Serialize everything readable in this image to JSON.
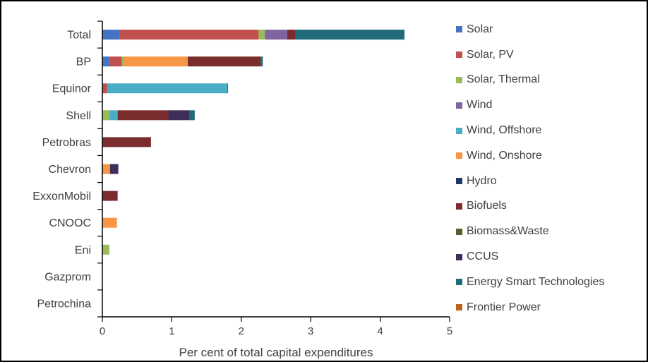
{
  "chart_data": {
    "type": "bar",
    "orientation": "horizontal",
    "stacked": true,
    "title": "",
    "xlabel": "Per cent of total capital expenditures",
    "ylabel": "",
    "xlim": [
      0,
      5
    ],
    "xticks": [
      0,
      1,
      2,
      3,
      4,
      5
    ],
    "grid": false,
    "legend_position": "right",
    "categories": [
      "Total",
      "BP",
      "Equinor",
      "Shell",
      "Petrobras",
      "Chevron",
      "ExxonMobil",
      "CNOOC",
      "Eni",
      "Gazprom",
      "Petrochina"
    ],
    "series": [
      {
        "name": "Solar",
        "color": "#4472C4",
        "values": [
          0.25,
          0.1,
          0,
          0,
          0,
          0,
          0,
          0,
          0,
          0,
          0
        ]
      },
      {
        "name": "Solar, PV",
        "color": "#C0504D",
        "values": [
          2.0,
          0.18,
          0.07,
          0,
          0,
          0,
          0,
          0,
          0,
          0,
          0
        ]
      },
      {
        "name": "Solar, Thermal",
        "color": "#9BBB59",
        "values": [
          0.09,
          0.03,
          0,
          0.1,
          0,
          0,
          0,
          0,
          0.1,
          0,
          0
        ]
      },
      {
        "name": "Wind",
        "color": "#8064A2",
        "values": [
          0.32,
          0,
          0,
          0,
          0,
          0,
          0,
          0,
          0,
          0,
          0
        ]
      },
      {
        "name": "Wind, Offshore",
        "color": "#4BACC6",
        "values": [
          0,
          0,
          1.73,
          0.12,
          0,
          0,
          0,
          0,
          0,
          0,
          0
        ]
      },
      {
        "name": "Wind, Onshore",
        "color": "#F79646",
        "values": [
          0,
          0.92,
          0,
          0,
          0,
          0.11,
          0,
          0.21,
          0,
          0,
          0
        ]
      },
      {
        "name": "Hydro",
        "color": "#1F3864",
        "values": [
          0,
          0,
          0,
          0,
          0,
          0,
          0,
          0,
          0,
          0,
          0
        ]
      },
      {
        "name": "Biofuels",
        "color": "#7B2C2C",
        "values": [
          0.12,
          1.05,
          0,
          0.73,
          0.7,
          0,
          0.22,
          0,
          0,
          0,
          0
        ]
      },
      {
        "name": "Biomass&Waste",
        "color": "#4F6228",
        "values": [
          0,
          0,
          0,
          0,
          0,
          0,
          0,
          0,
          0,
          0,
          0
        ]
      },
      {
        "name": "CCUS",
        "color": "#3F2E5A",
        "values": [
          0,
          0,
          0,
          0.3,
          0,
          0.12,
          0,
          0,
          0,
          0,
          0
        ]
      },
      {
        "name": "Energy Smart Technologies",
        "color": "#1F6B7A",
        "values": [
          1.57,
          0.03,
          0.01,
          0.08,
          0,
          0,
          0,
          0,
          0,
          0,
          0
        ]
      },
      {
        "name": "Frontier Power",
        "color": "#C0601C",
        "values": [
          0,
          0,
          0,
          0,
          0,
          0,
          0,
          0,
          0,
          0,
          0
        ]
      }
    ]
  }
}
